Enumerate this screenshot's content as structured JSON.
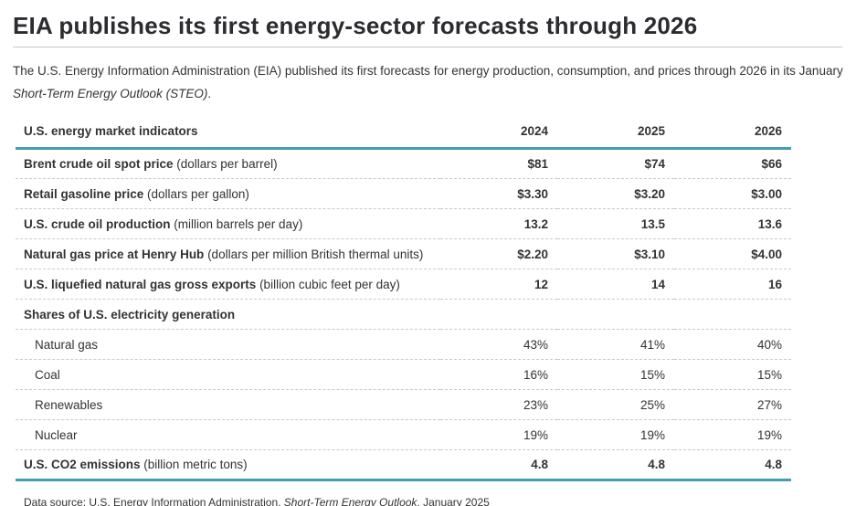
{
  "page": {
    "title": "EIA publishes its first energy-sector forecasts through 2026",
    "intro": {
      "text": "The U.S. Energy Information Administration (EIA) published its first forecasts for energy production, consumption, and prices through 2026 in its January ",
      "italic": "Short-Term Energy Outlook (STEO)",
      "suffix": "."
    },
    "source": {
      "prefix": "Data source: U.S. Energy Information Administration, ",
      "italic": "Short-Term Energy Outlook",
      "suffix": ", January 2025"
    }
  },
  "colors": {
    "accent_teal": "#459db2",
    "title_text": "#2b2b30",
    "body_text": "#333333",
    "title_rule_gray": "#c8c8c8",
    "row_divider_gray": "#c9c9c9"
  },
  "chart_data": {
    "type": "table",
    "title": "EIA publishes its first energy-sector forecasts through 2026",
    "columns": [
      "U.S. energy market indicators",
      "2024",
      "2025",
      "2026"
    ],
    "rows": [
      {
        "label": "Brent crude oil spot price",
        "unit": "(dollars per barrel)",
        "style": "indicator",
        "values": [
          "$81",
          "$74",
          "$66"
        ]
      },
      {
        "label": "Retail gasoline price",
        "unit": "(dollars per gallon)",
        "style": "indicator",
        "values": [
          "$3.30",
          "$3.20",
          "$3.00"
        ]
      },
      {
        "label": "U.S. crude oil production",
        "unit": "(million barrels per day)",
        "style": "indicator",
        "values": [
          "13.2",
          "13.5",
          "13.6"
        ]
      },
      {
        "label": "Natural gas price at Henry Hub",
        "unit": "(dollars per million British thermal units)",
        "style": "indicator",
        "values": [
          "$2.20",
          "$3.10",
          "$4.00"
        ]
      },
      {
        "label": "U.S. liquefied natural gas gross exports",
        "unit": "(billion cubic feet per day)",
        "style": "indicator",
        "values": [
          "12",
          "14",
          "16"
        ]
      },
      {
        "label": "Shares of U.S. electricity generation",
        "unit": "",
        "style": "section",
        "values": []
      },
      {
        "label": "Natural gas",
        "unit": "",
        "style": "sub",
        "values": [
          "43%",
          "41%",
          "40%"
        ]
      },
      {
        "label": "Coal",
        "unit": "",
        "style": "sub",
        "values": [
          "16%",
          "15%",
          "15%"
        ]
      },
      {
        "label": "Renewables",
        "unit": "",
        "style": "sub",
        "values": [
          "23%",
          "25%",
          "27%"
        ]
      },
      {
        "label": "Nuclear",
        "unit": "",
        "style": "sub",
        "values": [
          "19%",
          "19%",
          "19%"
        ]
      },
      {
        "label": "U.S. CO2 emissions",
        "unit": "(billion metric tons)",
        "style": "indicator",
        "values": [
          "4.8",
          "4.8",
          "4.8"
        ]
      }
    ]
  }
}
